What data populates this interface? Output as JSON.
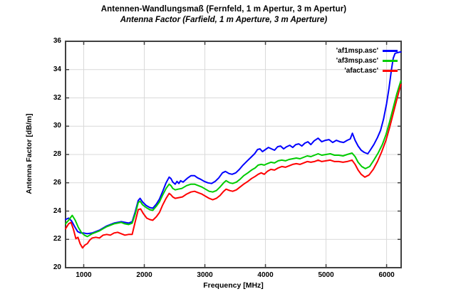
{
  "page": {
    "background": "#ffffff"
  },
  "chart_data": {
    "type": "line",
    "title": "Antennen-Wandlungsmaß (Fernfeld, 1 m Apertur, 3 m Apertur)",
    "subtitle": "Antenna Factor (Farfield, 1 m Aperture, 3 m Aperture)",
    "xlabel": "Frequency [MHz]",
    "ylabel": "Antenna Factor [dB/m]",
    "xlim": [
      700,
      6240
    ],
    "ylim": [
      20,
      36
    ],
    "xticks": [
      1000,
      2000,
      3000,
      4000,
      5000,
      6000
    ],
    "yticks": [
      20,
      22,
      24,
      26,
      28,
      30,
      32,
      34,
      36
    ],
    "grid": true,
    "legend_position": "top-right-inside",
    "frame_color": "#404040",
    "grid_color": "#d9d9d9",
    "series": [
      {
        "name": "'af1msp.asc'",
        "color": "#0000ff",
        "points": [
          [
            700,
            23.4
          ],
          [
            750,
            23.5
          ],
          [
            800,
            23.3
          ],
          [
            850,
            22.9
          ],
          [
            900,
            22.55
          ],
          [
            950,
            22.45
          ],
          [
            1000,
            22.45
          ],
          [
            1060,
            22.4
          ],
          [
            1140,
            22.45
          ],
          [
            1200,
            22.55
          ],
          [
            1260,
            22.65
          ],
          [
            1320,
            22.8
          ],
          [
            1380,
            22.95
          ],
          [
            1440,
            23.05
          ],
          [
            1500,
            23.15
          ],
          [
            1560,
            23.2
          ],
          [
            1620,
            23.25
          ],
          [
            1680,
            23.2
          ],
          [
            1740,
            23.15
          ],
          [
            1800,
            23.25
          ],
          [
            1850,
            23.95
          ],
          [
            1900,
            24.75
          ],
          [
            1930,
            24.9
          ],
          [
            1970,
            24.65
          ],
          [
            2030,
            24.4
          ],
          [
            2090,
            24.25
          ],
          [
            2140,
            24.2
          ],
          [
            2200,
            24.5
          ],
          [
            2250,
            24.85
          ],
          [
            2300,
            25.35
          ],
          [
            2360,
            26.0
          ],
          [
            2410,
            26.4
          ],
          [
            2440,
            26.3
          ],
          [
            2470,
            26.05
          ],
          [
            2510,
            25.9
          ],
          [
            2540,
            26.1
          ],
          [
            2570,
            25.95
          ],
          [
            2600,
            26.15
          ],
          [
            2640,
            26.05
          ],
          [
            2680,
            26.2
          ],
          [
            2720,
            26.35
          ],
          [
            2770,
            26.5
          ],
          [
            2830,
            26.5
          ],
          [
            2880,
            26.35
          ],
          [
            2930,
            26.25
          ],
          [
            2990,
            26.1
          ],
          [
            3050,
            26.0
          ],
          [
            3110,
            25.95
          ],
          [
            3170,
            26.1
          ],
          [
            3230,
            26.35
          ],
          [
            3290,
            26.7
          ],
          [
            3340,
            26.8
          ],
          [
            3400,
            26.65
          ],
          [
            3450,
            26.6
          ],
          [
            3510,
            26.7
          ],
          [
            3570,
            26.95
          ],
          [
            3630,
            27.25
          ],
          [
            3700,
            27.55
          ],
          [
            3760,
            27.8
          ],
          [
            3820,
            28.05
          ],
          [
            3870,
            28.35
          ],
          [
            3910,
            28.4
          ],
          [
            3950,
            28.2
          ],
          [
            4000,
            28.35
          ],
          [
            4050,
            28.5
          ],
          [
            4100,
            28.4
          ],
          [
            4150,
            28.3
          ],
          [
            4200,
            28.55
          ],
          [
            4250,
            28.6
          ],
          [
            4300,
            28.4
          ],
          [
            4350,
            28.55
          ],
          [
            4400,
            28.65
          ],
          [
            4450,
            28.5
          ],
          [
            4500,
            28.7
          ],
          [
            4550,
            28.75
          ],
          [
            4600,
            28.6
          ],
          [
            4650,
            28.8
          ],
          [
            4700,
            28.9
          ],
          [
            4750,
            28.7
          ],
          [
            4800,
            28.95
          ],
          [
            4870,
            29.15
          ],
          [
            4930,
            28.9
          ],
          [
            4990,
            29.0
          ],
          [
            5050,
            29.05
          ],
          [
            5110,
            28.85
          ],
          [
            5170,
            29.0
          ],
          [
            5230,
            28.9
          ],
          [
            5290,
            28.85
          ],
          [
            5350,
            29.0
          ],
          [
            5400,
            29.1
          ],
          [
            5435,
            29.5
          ],
          [
            5480,
            29.0
          ],
          [
            5530,
            28.6
          ],
          [
            5580,
            28.3
          ],
          [
            5630,
            28.15
          ],
          [
            5690,
            28.05
          ],
          [
            5730,
            28.3
          ],
          [
            5790,
            28.7
          ],
          [
            5850,
            29.2
          ],
          [
            5900,
            29.7
          ],
          [
            5950,
            30.5
          ],
          [
            6000,
            31.6
          ],
          [
            6040,
            32.7
          ],
          [
            6080,
            34.0
          ],
          [
            6110,
            34.8
          ],
          [
            6140,
            35.15
          ],
          [
            6180,
            35.2
          ],
          [
            6235,
            35.25
          ]
        ]
      },
      {
        "name": "'af3msp.asc'",
        "color": "#00cc00",
        "points": [
          [
            700,
            23.1
          ],
          [
            750,
            23.35
          ],
          [
            810,
            23.7
          ],
          [
            860,
            23.35
          ],
          [
            910,
            22.85
          ],
          [
            960,
            22.5
          ],
          [
            1010,
            22.3
          ],
          [
            1060,
            22.2
          ],
          [
            1140,
            22.4
          ],
          [
            1200,
            22.5
          ],
          [
            1260,
            22.6
          ],
          [
            1320,
            22.75
          ],
          [
            1380,
            22.9
          ],
          [
            1440,
            23.0
          ],
          [
            1500,
            23.1
          ],
          [
            1560,
            23.15
          ],
          [
            1620,
            23.2
          ],
          [
            1680,
            23.1
          ],
          [
            1740,
            23.05
          ],
          [
            1800,
            23.15
          ],
          [
            1850,
            23.8
          ],
          [
            1900,
            24.6
          ],
          [
            1930,
            24.7
          ],
          [
            1970,
            24.45
          ],
          [
            2030,
            24.25
          ],
          [
            2090,
            24.1
          ],
          [
            2140,
            24.05
          ],
          [
            2200,
            24.35
          ],
          [
            2250,
            24.65
          ],
          [
            2300,
            25.1
          ],
          [
            2360,
            25.6
          ],
          [
            2410,
            25.9
          ],
          [
            2440,
            25.8
          ],
          [
            2470,
            25.6
          ],
          [
            2510,
            25.5
          ],
          [
            2560,
            25.55
          ],
          [
            2620,
            25.6
          ],
          [
            2700,
            25.8
          ],
          [
            2770,
            25.9
          ],
          [
            2830,
            25.9
          ],
          [
            2890,
            25.8
          ],
          [
            2950,
            25.7
          ],
          [
            3010,
            25.55
          ],
          [
            3070,
            25.4
          ],
          [
            3130,
            25.35
          ],
          [
            3190,
            25.45
          ],
          [
            3250,
            25.7
          ],
          [
            3310,
            26.0
          ],
          [
            3350,
            26.15
          ],
          [
            3410,
            26.0
          ],
          [
            3460,
            25.95
          ],
          [
            3520,
            26.05
          ],
          [
            3580,
            26.25
          ],
          [
            3640,
            26.5
          ],
          [
            3710,
            26.7
          ],
          [
            3770,
            26.9
          ],
          [
            3830,
            27.05
          ],
          [
            3880,
            27.25
          ],
          [
            3930,
            27.3
          ],
          [
            3980,
            27.25
          ],
          [
            4030,
            27.35
          ],
          [
            4090,
            27.45
          ],
          [
            4150,
            27.4
          ],
          [
            4210,
            27.55
          ],
          [
            4270,
            27.6
          ],
          [
            4330,
            27.55
          ],
          [
            4390,
            27.65
          ],
          [
            4450,
            27.7
          ],
          [
            4510,
            27.75
          ],
          [
            4570,
            27.7
          ],
          [
            4630,
            27.8
          ],
          [
            4690,
            27.9
          ],
          [
            4750,
            27.85
          ],
          [
            4810,
            27.95
          ],
          [
            4870,
            28.05
          ],
          [
            4930,
            27.95
          ],
          [
            5000,
            28.0
          ],
          [
            5070,
            28.05
          ],
          [
            5140,
            27.95
          ],
          [
            5210,
            27.95
          ],
          [
            5280,
            27.9
          ],
          [
            5350,
            28.0
          ],
          [
            5430,
            28.1
          ],
          [
            5480,
            27.85
          ],
          [
            5530,
            27.45
          ],
          [
            5590,
            27.15
          ],
          [
            5650,
            27.0
          ],
          [
            5720,
            27.15
          ],
          [
            5790,
            27.6
          ],
          [
            5860,
            28.1
          ],
          [
            5930,
            28.7
          ],
          [
            5990,
            29.4
          ],
          [
            6050,
            30.3
          ],
          [
            6110,
            31.3
          ],
          [
            6170,
            32.3
          ],
          [
            6235,
            33.2
          ]
        ]
      },
      {
        "name": "'afact.asc'",
        "color": "#ff0000",
        "points": [
          [
            700,
            22.75
          ],
          [
            750,
            23.1
          ],
          [
            790,
            23.2
          ],
          [
            830,
            22.7
          ],
          [
            870,
            22.05
          ],
          [
            905,
            22.15
          ],
          [
            940,
            21.7
          ],
          [
            980,
            21.4
          ],
          [
            1020,
            21.6
          ],
          [
            1060,
            21.7
          ],
          [
            1100,
            21.95
          ],
          [
            1140,
            22.1
          ],
          [
            1200,
            22.15
          ],
          [
            1260,
            22.1
          ],
          [
            1320,
            22.3
          ],
          [
            1380,
            22.35
          ],
          [
            1440,
            22.3
          ],
          [
            1500,
            22.45
          ],
          [
            1560,
            22.5
          ],
          [
            1620,
            22.4
          ],
          [
            1680,
            22.3
          ],
          [
            1740,
            22.35
          ],
          [
            1800,
            22.35
          ],
          [
            1850,
            23.25
          ],
          [
            1900,
            24.1
          ],
          [
            1940,
            24.15
          ],
          [
            1980,
            23.85
          ],
          [
            2040,
            23.5
          ],
          [
            2090,
            23.4
          ],
          [
            2140,
            23.35
          ],
          [
            2200,
            23.6
          ],
          [
            2250,
            23.9
          ],
          [
            2300,
            24.4
          ],
          [
            2360,
            24.9
          ],
          [
            2410,
            25.25
          ],
          [
            2440,
            25.15
          ],
          [
            2470,
            25.0
          ],
          [
            2510,
            24.9
          ],
          [
            2570,
            24.95
          ],
          [
            2630,
            25.0
          ],
          [
            2700,
            25.2
          ],
          [
            2770,
            25.35
          ],
          [
            2830,
            25.4
          ],
          [
            2890,
            25.3
          ],
          [
            2950,
            25.2
          ],
          [
            3010,
            25.05
          ],
          [
            3070,
            24.9
          ],
          [
            3130,
            24.8
          ],
          [
            3190,
            24.9
          ],
          [
            3250,
            25.1
          ],
          [
            3310,
            25.4
          ],
          [
            3350,
            25.55
          ],
          [
            3410,
            25.45
          ],
          [
            3460,
            25.4
          ],
          [
            3520,
            25.5
          ],
          [
            3580,
            25.7
          ],
          [
            3640,
            25.9
          ],
          [
            3710,
            26.1
          ],
          [
            3770,
            26.3
          ],
          [
            3830,
            26.45
          ],
          [
            3880,
            26.6
          ],
          [
            3930,
            26.7
          ],
          [
            3980,
            26.6
          ],
          [
            4030,
            26.8
          ],
          [
            4090,
            26.95
          ],
          [
            4150,
            26.9
          ],
          [
            4210,
            27.05
          ],
          [
            4270,
            27.15
          ],
          [
            4330,
            27.1
          ],
          [
            4390,
            27.2
          ],
          [
            4450,
            27.3
          ],
          [
            4510,
            27.35
          ],
          [
            4570,
            27.3
          ],
          [
            4630,
            27.4
          ],
          [
            4690,
            27.5
          ],
          [
            4750,
            27.45
          ],
          [
            4810,
            27.5
          ],
          [
            4870,
            27.6
          ],
          [
            4930,
            27.5
          ],
          [
            5000,
            27.55
          ],
          [
            5070,
            27.6
          ],
          [
            5140,
            27.5
          ],
          [
            5210,
            27.5
          ],
          [
            5280,
            27.45
          ],
          [
            5350,
            27.5
          ],
          [
            5430,
            27.6
          ],
          [
            5480,
            27.3
          ],
          [
            5530,
            26.9
          ],
          [
            5580,
            26.6
          ],
          [
            5640,
            26.4
          ],
          [
            5710,
            26.55
          ],
          [
            5780,
            26.95
          ],
          [
            5850,
            27.5
          ],
          [
            5920,
            28.2
          ],
          [
            5990,
            29.0
          ],
          [
            6050,
            29.9
          ],
          [
            6110,
            30.9
          ],
          [
            6170,
            31.9
          ],
          [
            6235,
            32.95
          ]
        ]
      }
    ]
  }
}
